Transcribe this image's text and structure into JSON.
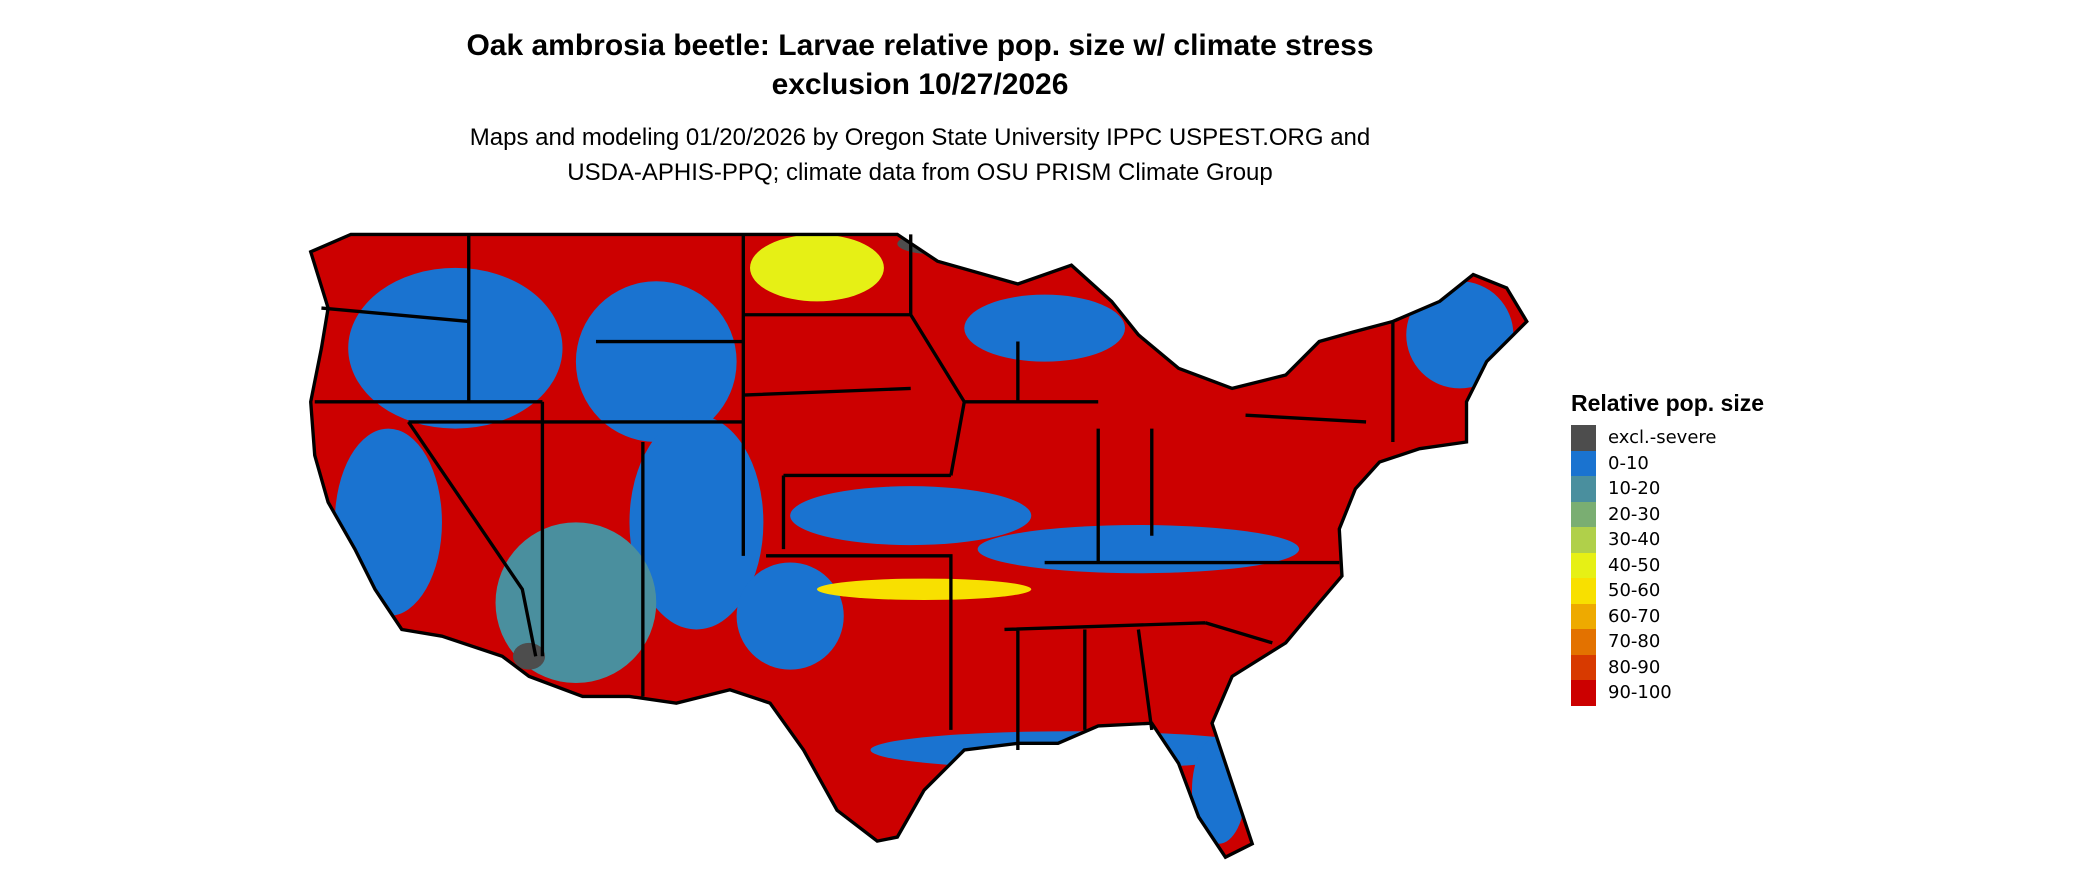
{
  "title_line1": "Oak ambrosia beetle: Larvae relative pop. size w/ climate stress",
  "title_line2": "exclusion 10/27/2026",
  "subtitle_line1": "Maps and modeling 01/20/2026 by Oregon State University IPPC USPEST.ORG and",
  "subtitle_line2": "USDA-APHIS-PPQ; climate data from OSU PRISM Climate Group",
  "legend": {
    "title": "Relative pop. size",
    "items": [
      {
        "label": "excl.-severe",
        "color": "#4d4d4d"
      },
      {
        "label": "0-10",
        "color": "#1a73d0"
      },
      {
        "label": "10-20",
        "color": "#4a8f9e"
      },
      {
        "label": "20-30",
        "color": "#7aae72"
      },
      {
        "label": "30-40",
        "color": "#b0d04a"
      },
      {
        "label": "40-50",
        "color": "#e6f015"
      },
      {
        "label": "50-60",
        "color": "#f8e000"
      },
      {
        "label": "60-70",
        "color": "#eeaa00"
      },
      {
        "label": "70-80",
        "color": "#e37200"
      },
      {
        "label": "80-90",
        "color": "#d83a00"
      },
      {
        "label": "90-100",
        "color": "#cc0000"
      }
    ]
  },
  "map": {
    "region": "Contiguous United States",
    "state_borders": true,
    "dominant_class": "90-100"
  }
}
